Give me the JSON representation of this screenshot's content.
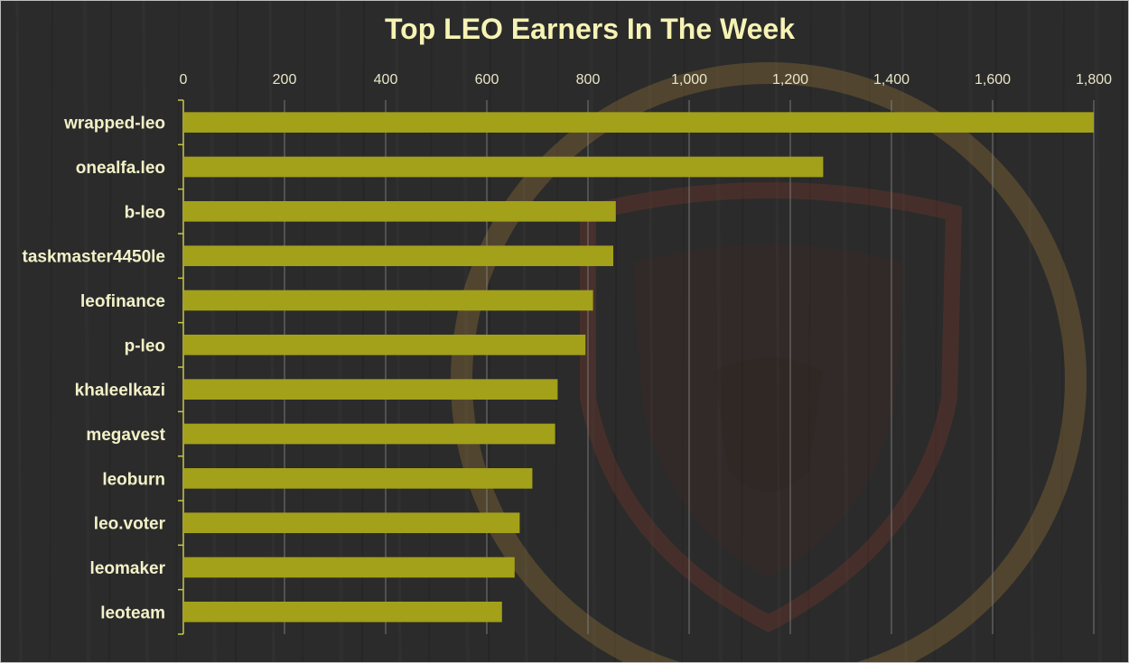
{
  "chart_data": {
    "type": "bar",
    "orientation": "horizontal",
    "title": "Top LEO Earners In The Week",
    "xlabel": "",
    "ylabel": "",
    "xlim": [
      0,
      1800
    ],
    "x_ticks": [
      0,
      200,
      400,
      600,
      800,
      1000,
      1200,
      1400,
      1600,
      1800
    ],
    "x_tick_labels": [
      "0",
      "200",
      "400",
      "600",
      "800",
      "1,000",
      "1,200",
      "1,400",
      "1,600",
      "1,800"
    ],
    "x_axis_position": "top",
    "grid": true,
    "legend": "none",
    "categories": [
      "wrapped-leo",
      "onealfa.leo",
      "b-leo",
      "taskmaster4450le",
      "leofinance",
      "p-leo",
      "khaleelkazi",
      "megavest",
      "leoburn",
      "leo.voter",
      "leomaker",
      "leoteam"
    ],
    "values": [
      1800,
      1265,
      855,
      850,
      810,
      795,
      740,
      735,
      690,
      665,
      655,
      630
    ],
    "colors": {
      "bar": "#a3a01a",
      "background": "#2b2b2b",
      "grid": "#8a8a8a",
      "axis": "#c9c64a",
      "title": "#f6f3b4",
      "labels": "#f3f1c8",
      "watermark": "#b38a3c"
    },
    "background_watermark": "lion-shield-logo"
  }
}
